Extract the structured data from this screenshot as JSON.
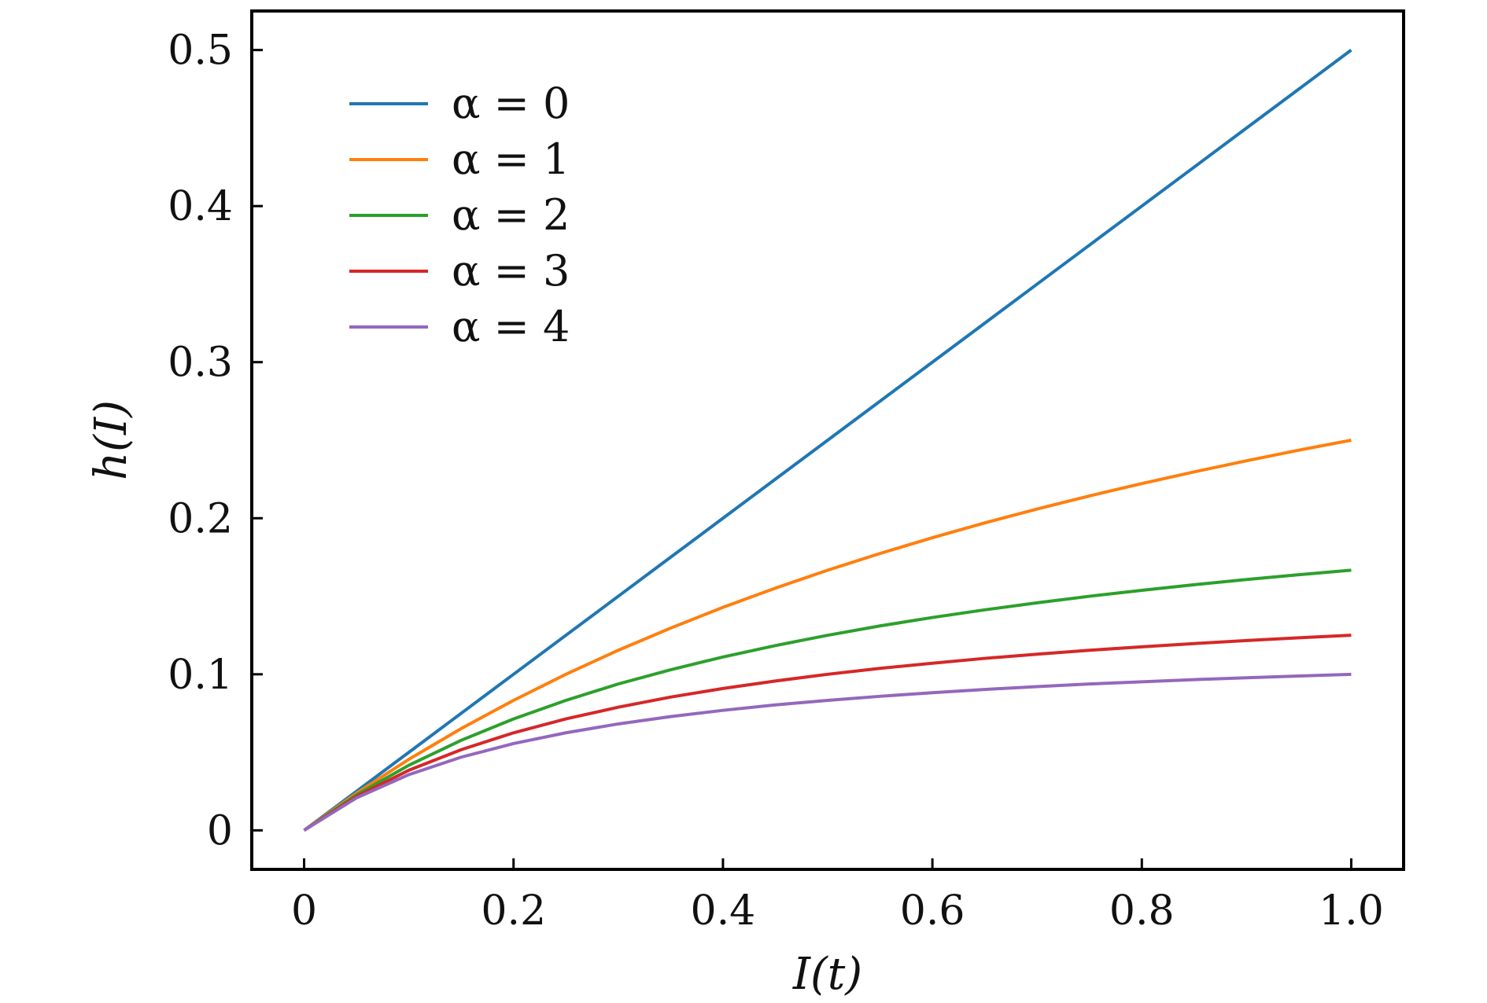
{
  "chart_data": {
    "type": "line",
    "xlabel": "I(t)",
    "ylabel": "h(I)",
    "xlim": [
      -0.05,
      1.05
    ],
    "ylim": [
      -0.025,
      0.525
    ],
    "xticks": [
      0,
      0.2,
      0.4,
      0.6,
      0.8,
      1.0
    ],
    "xtick_labels": [
      "0",
      "0.2",
      "0.4",
      "0.6",
      "0.8",
      "1.0"
    ],
    "yticks": [
      0,
      0.1,
      0.2,
      0.3,
      0.4,
      0.5
    ],
    "ytick_labels": [
      "0",
      "0.1",
      "0.2",
      "0.3",
      "0.4",
      "0.5"
    ],
    "grid": false,
    "legend_position": "top-left",
    "x": [
      0,
      0.05,
      0.1,
      0.15,
      0.2,
      0.25,
      0.3,
      0.35,
      0.4,
      0.45,
      0.5,
      0.55,
      0.6,
      0.65,
      0.7,
      0.75,
      0.8,
      0.85,
      0.9,
      0.95,
      1.0
    ],
    "series": [
      {
        "name": "α = 0",
        "color": "#1f77b4",
        "values": [
          0,
          0.025,
          0.05,
          0.075,
          0.1,
          0.125,
          0.15,
          0.175,
          0.2,
          0.225,
          0.25,
          0.275,
          0.3,
          0.325,
          0.35,
          0.375,
          0.4,
          0.425,
          0.45,
          0.475,
          0.5
        ]
      },
      {
        "name": "α = 1",
        "color": "#ff7f0e",
        "values": [
          0,
          0.0238,
          0.0455,
          0.0652,
          0.0833,
          0.1,
          0.1154,
          0.1296,
          0.1429,
          0.1552,
          0.1667,
          0.1774,
          0.1875,
          0.197,
          0.2059,
          0.2143,
          0.2222,
          0.2297,
          0.2368,
          0.2436,
          0.25
        ]
      },
      {
        "name": "α = 2",
        "color": "#2ca02c",
        "values": [
          0,
          0.0227,
          0.0417,
          0.0577,
          0.0714,
          0.0833,
          0.0938,
          0.1029,
          0.1111,
          0.1184,
          0.125,
          0.131,
          0.1364,
          0.1413,
          0.1458,
          0.15,
          0.1538,
          0.1574,
          0.1607,
          0.1638,
          0.1667
        ]
      },
      {
        "name": "α = 3",
        "color": "#d62728",
        "values": [
          0,
          0.0217,
          0.0385,
          0.0517,
          0.0625,
          0.0714,
          0.0789,
          0.0854,
          0.0909,
          0.0957,
          0.1,
          0.1038,
          0.1071,
          0.1102,
          0.1129,
          0.1154,
          0.1176,
          0.1197,
          0.1216,
          0.1234,
          0.125
        ]
      },
      {
        "name": "α = 4",
        "color": "#9467bd",
        "values": [
          0,
          0.0208,
          0.0357,
          0.0469,
          0.0556,
          0.0625,
          0.0682,
          0.0729,
          0.0769,
          0.0804,
          0.0833,
          0.0859,
          0.0882,
          0.0903,
          0.0921,
          0.0938,
          0.0952,
          0.0966,
          0.0978,
          0.0989,
          0.1
        ]
      }
    ]
  }
}
